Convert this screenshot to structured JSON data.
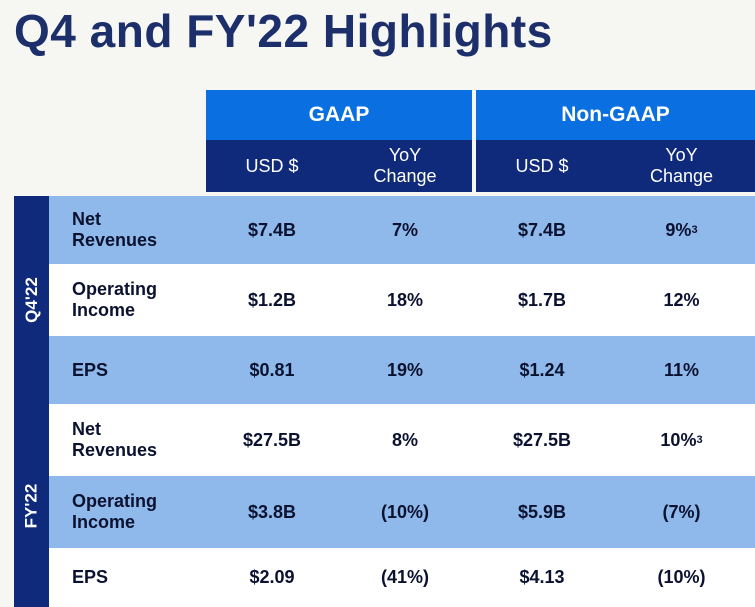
{
  "title": "Q4 and FY'22 Highlights",
  "columns": {
    "gaap": "GAAP",
    "non_gaap": "Non-GAAP",
    "usd": "USD $",
    "yoy": "YoY\nChange"
  },
  "periods": {
    "q4": "Q4'22",
    "fy": "FY'22"
  },
  "rows": [
    {
      "label": "Net\nRevenues",
      "gaap_usd": "$7.4B",
      "gaap_yoy": "7%",
      "ng_usd": "$7.4B",
      "ng_yoy": "9%",
      "ng_yoy_note": "3"
    },
    {
      "label": "Operating\nIncome",
      "gaap_usd": "$1.2B",
      "gaap_yoy": "18%",
      "ng_usd": "$1.7B",
      "ng_yoy": "12%",
      "ng_yoy_note": ""
    },
    {
      "label": "EPS",
      "gaap_usd": "$0.81",
      "gaap_yoy": "19%",
      "ng_usd": "$1.24",
      "ng_yoy": "11%",
      "ng_yoy_note": ""
    },
    {
      "label": "Net\nRevenues",
      "gaap_usd": "$27.5B",
      "gaap_yoy": "8%",
      "ng_usd": "$27.5B",
      "ng_yoy": "10%",
      "ng_yoy_note": "3"
    },
    {
      "label": "Operating\nIncome",
      "gaap_usd": "$3.8B",
      "gaap_yoy": "(10%)",
      "ng_usd": "$5.9B",
      "ng_yoy": "(7%)",
      "ng_yoy_note": ""
    },
    {
      "label": "EPS",
      "gaap_usd": "$2.09",
      "gaap_yoy": "(41%)",
      "ng_usd": "$4.13",
      "ng_yoy": "(10%)",
      "ng_yoy_note": ""
    }
  ]
}
